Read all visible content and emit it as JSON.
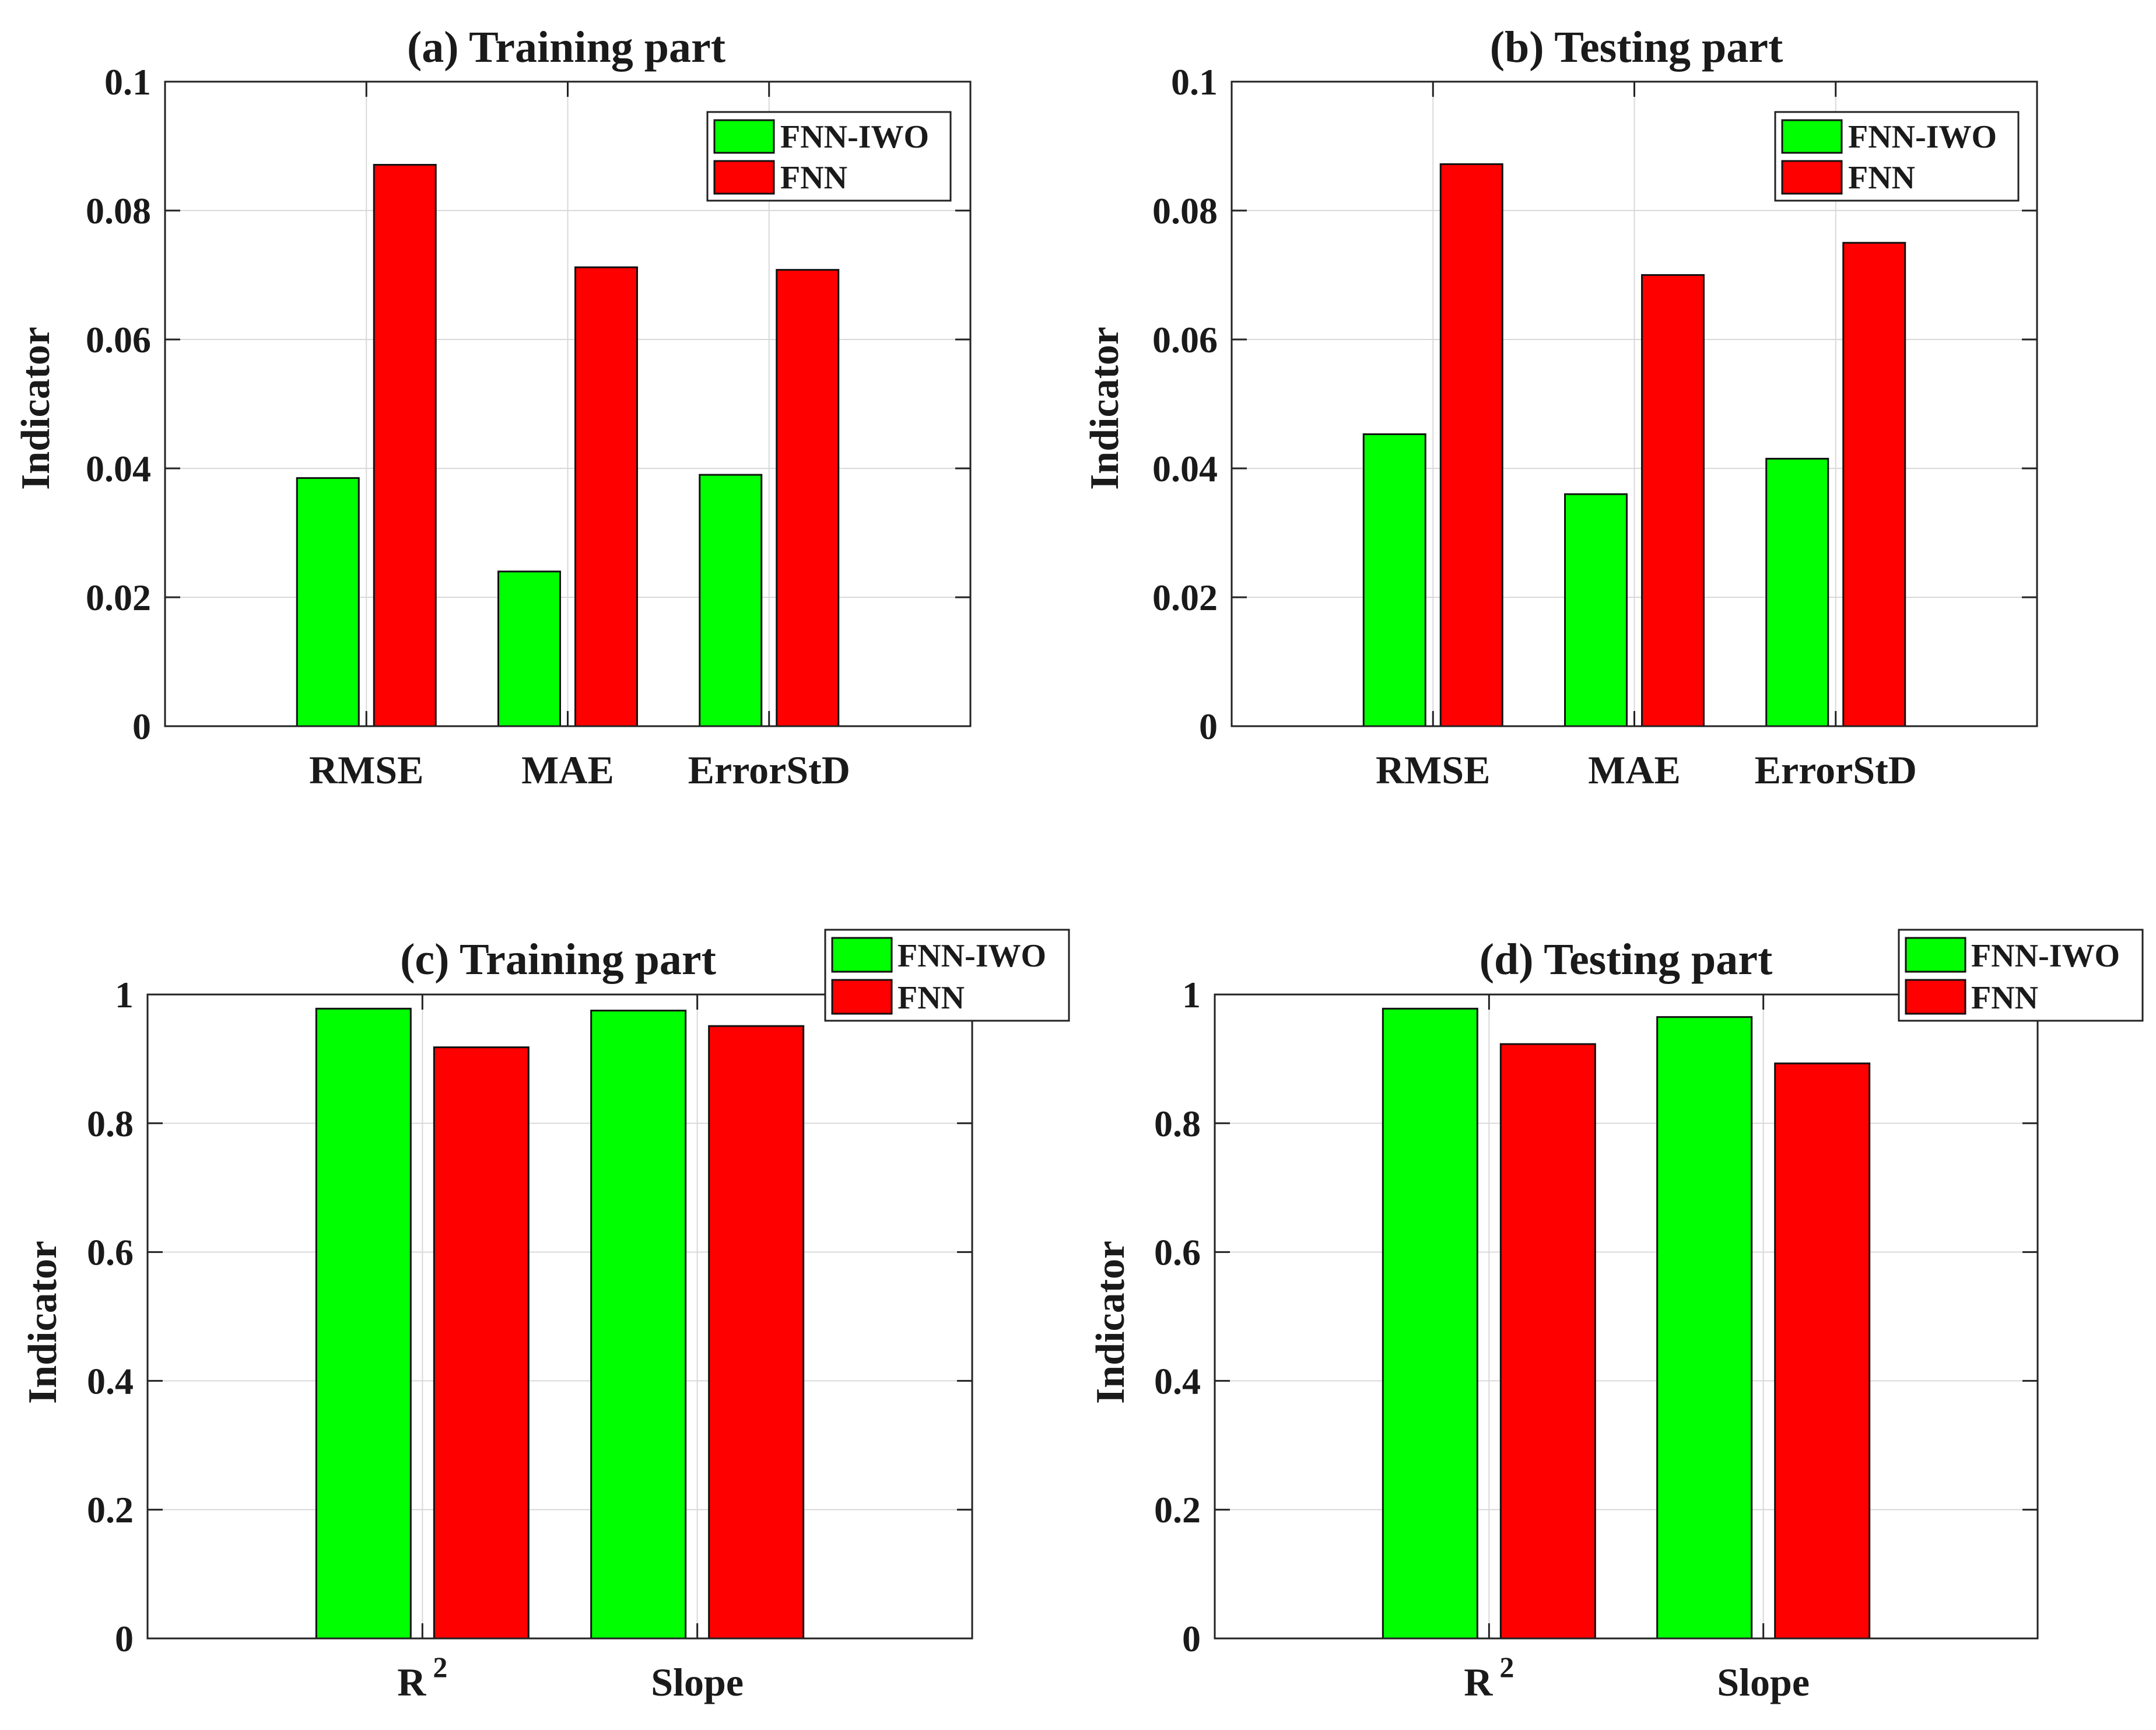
{
  "colors": {
    "fnn_iwo": "#00ff00",
    "fnn": "#ff0000",
    "grid": "#d9d9d9",
    "axis": "#222222"
  },
  "chart_data": [
    {
      "id": "a",
      "type": "bar",
      "title": "(a) Training part",
      "xlabel": "",
      "ylabel": "Indicator",
      "ylim": [
        0,
        0.1
      ],
      "yticks": [
        "0",
        "0.02",
        "0.04",
        "0.06",
        "0.08",
        "0.1"
      ],
      "ytick_values": [
        0,
        0.02,
        0.04,
        0.06,
        0.08,
        0.1
      ],
      "categories": [
        {
          "label": "RMSE"
        },
        {
          "label": "MAE"
        },
        {
          "label": "ErrorStD"
        }
      ],
      "series": [
        {
          "name": "FNN-IWO",
          "values": [
            0.0385,
            0.024,
            0.039
          ]
        },
        {
          "name": "FNN",
          "values": [
            0.0871,
            0.0712,
            0.0708
          ]
        }
      ],
      "legend": "top-right inside",
      "grid": true
    },
    {
      "id": "b",
      "type": "bar",
      "title": "(b) Testing part",
      "xlabel": "",
      "ylabel": "Indicator",
      "ylim": [
        0,
        0.1
      ],
      "yticks": [
        "0",
        "0.02",
        "0.04",
        "0.06",
        "0.08",
        "0.1"
      ],
      "ytick_values": [
        0,
        0.02,
        0.04,
        0.06,
        0.08,
        0.1
      ],
      "categories": [
        {
          "label": "RMSE"
        },
        {
          "label": "MAE"
        },
        {
          "label": "ErrorStD"
        }
      ],
      "series": [
        {
          "name": "FNN-IWO",
          "values": [
            0.0453,
            0.036,
            0.0415
          ]
        },
        {
          "name": "FNN",
          "values": [
            0.0872,
            0.07,
            0.075
          ]
        }
      ],
      "legend": "top-right inside",
      "grid": true
    },
    {
      "id": "c",
      "type": "bar",
      "title": "(c) Training part",
      "xlabel": "",
      "ylabel": "Indicator",
      "ylim": [
        0,
        1
      ],
      "yticks": [
        "0",
        "0.2",
        "0.4",
        "0.6",
        "0.8",
        "1"
      ],
      "ytick_values": [
        0,
        0.2,
        0.4,
        0.6,
        0.8,
        1
      ],
      "categories": [
        {
          "label": "R",
          "sup": "2"
        },
        {
          "label": "Slope"
        }
      ],
      "series": [
        {
          "name": "FNN-IWO",
          "values": [
            0.978,
            0.975
          ]
        },
        {
          "name": "FNN",
          "values": [
            0.918,
            0.951
          ]
        }
      ],
      "legend": "top-right outside",
      "grid": true
    },
    {
      "id": "d",
      "type": "bar",
      "title": "(d) Testing part",
      "xlabel": "",
      "ylabel": "Indicator",
      "ylim": [
        0,
        1
      ],
      "yticks": [
        "0",
        "0.2",
        "0.4",
        "0.6",
        "0.8",
        "1"
      ],
      "ytick_values": [
        0,
        0.2,
        0.4,
        0.6,
        0.8,
        1
      ],
      "categories": [
        {
          "label": "R",
          "sup": "2"
        },
        {
          "label": "Slope"
        }
      ],
      "series": [
        {
          "name": "FNN-IWO",
          "values": [
            0.978,
            0.965
          ]
        },
        {
          "name": "FNN",
          "values": [
            0.923,
            0.893
          ]
        }
      ],
      "legend": "top-right outside",
      "grid": true
    }
  ]
}
